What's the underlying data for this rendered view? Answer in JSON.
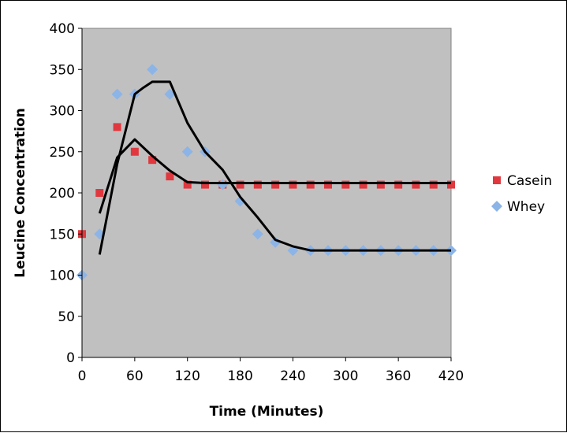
{
  "chart_data": {
    "type": "scatter",
    "title": "",
    "xlabel": "Time (Minutes)",
    "ylabel": "Leucine Concentration",
    "xlim": [
      0,
      420
    ],
    "ylim": [
      0,
      400
    ],
    "xticks": [
      0,
      60,
      120,
      180,
      240,
      300,
      360,
      420
    ],
    "yticks": [
      0,
      50,
      100,
      150,
      200,
      250,
      300,
      350,
      400
    ],
    "plot_background": "#c0c0c0",
    "grid": false,
    "legend_position": "right",
    "series": [
      {
        "name": "Casein",
        "marker": "square",
        "color": "#e0383e",
        "x": [
          0,
          20,
          40,
          60,
          80,
          100,
          120,
          140,
          160,
          180,
          200,
          220,
          240,
          260,
          280,
          300,
          320,
          340,
          360,
          380,
          400,
          420
        ],
        "y": [
          150,
          200,
          280,
          250,
          240,
          220,
          210,
          210,
          210,
          210,
          210,
          210,
          210,
          210,
          210,
          210,
          210,
          210,
          210,
          210,
          210,
          210
        ]
      },
      {
        "name": "Whey",
        "marker": "diamond",
        "color": "#8cb4e6",
        "x": [
          0,
          20,
          40,
          60,
          80,
          100,
          120,
          140,
          160,
          180,
          200,
          220,
          240,
          260,
          280,
          300,
          320,
          340,
          360,
          380,
          400,
          420
        ],
        "y": [
          100,
          150,
          320,
          320,
          350,
          320,
          250,
          250,
          210,
          190,
          150,
          140,
          130,
          130,
          130,
          130,
          130,
          130,
          130,
          130,
          130,
          130
        ]
      }
    ],
    "trendlines": [
      {
        "series": "Casein",
        "color": "#000000",
        "x": [
          20,
          40,
          60,
          80,
          100,
          120,
          140,
          160,
          180,
          200,
          220,
          240,
          260,
          280,
          300,
          320,
          340,
          360,
          380,
          400,
          420
        ],
        "y": [
          175,
          243,
          265,
          245,
          227,
          213,
          212,
          212,
          212,
          212,
          212,
          212,
          212,
          212,
          212,
          212,
          212,
          212,
          212,
          212,
          212
        ]
      },
      {
        "series": "Whey",
        "color": "#000000",
        "x": [
          20,
          40,
          60,
          70,
          80,
          90,
          100,
          120,
          140,
          160,
          180,
          200,
          220,
          240,
          260,
          280,
          300,
          320,
          340,
          360,
          380,
          400,
          420
        ],
        "y": [
          125,
          235,
          320,
          328,
          335,
          335,
          335,
          285,
          250,
          228,
          195,
          170,
          143,
          135,
          130,
          130,
          130,
          130,
          130,
          130,
          130,
          130,
          130
        ]
      }
    ]
  }
}
